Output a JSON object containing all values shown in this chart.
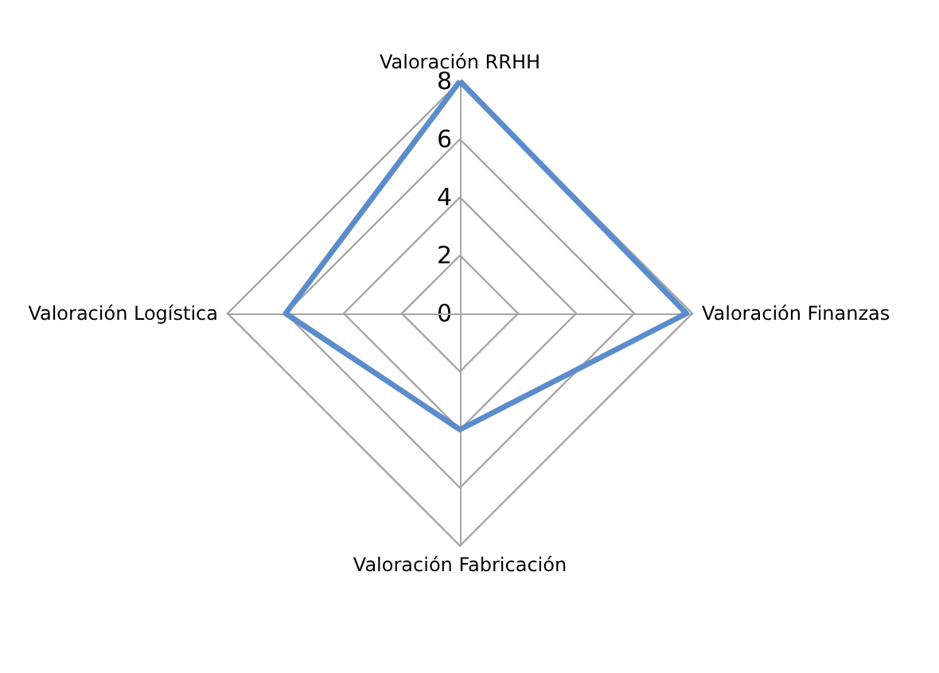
{
  "chart_data": {
    "type": "radar",
    "categories": [
      "Valoración RRHH",
      "Valoración Finanzas",
      "Valoración Fabricación",
      "Valoración Logística"
    ],
    "series": [
      {
        "color": "#5b8ccc",
        "values": [
          8,
          7.8,
          4,
          6
        ]
      }
    ],
    "ylim": [
      0,
      8
    ],
    "yticks": [
      0,
      2,
      4,
      6,
      8
    ],
    "grid": true,
    "marker": "none",
    "line_style": "solid"
  }
}
